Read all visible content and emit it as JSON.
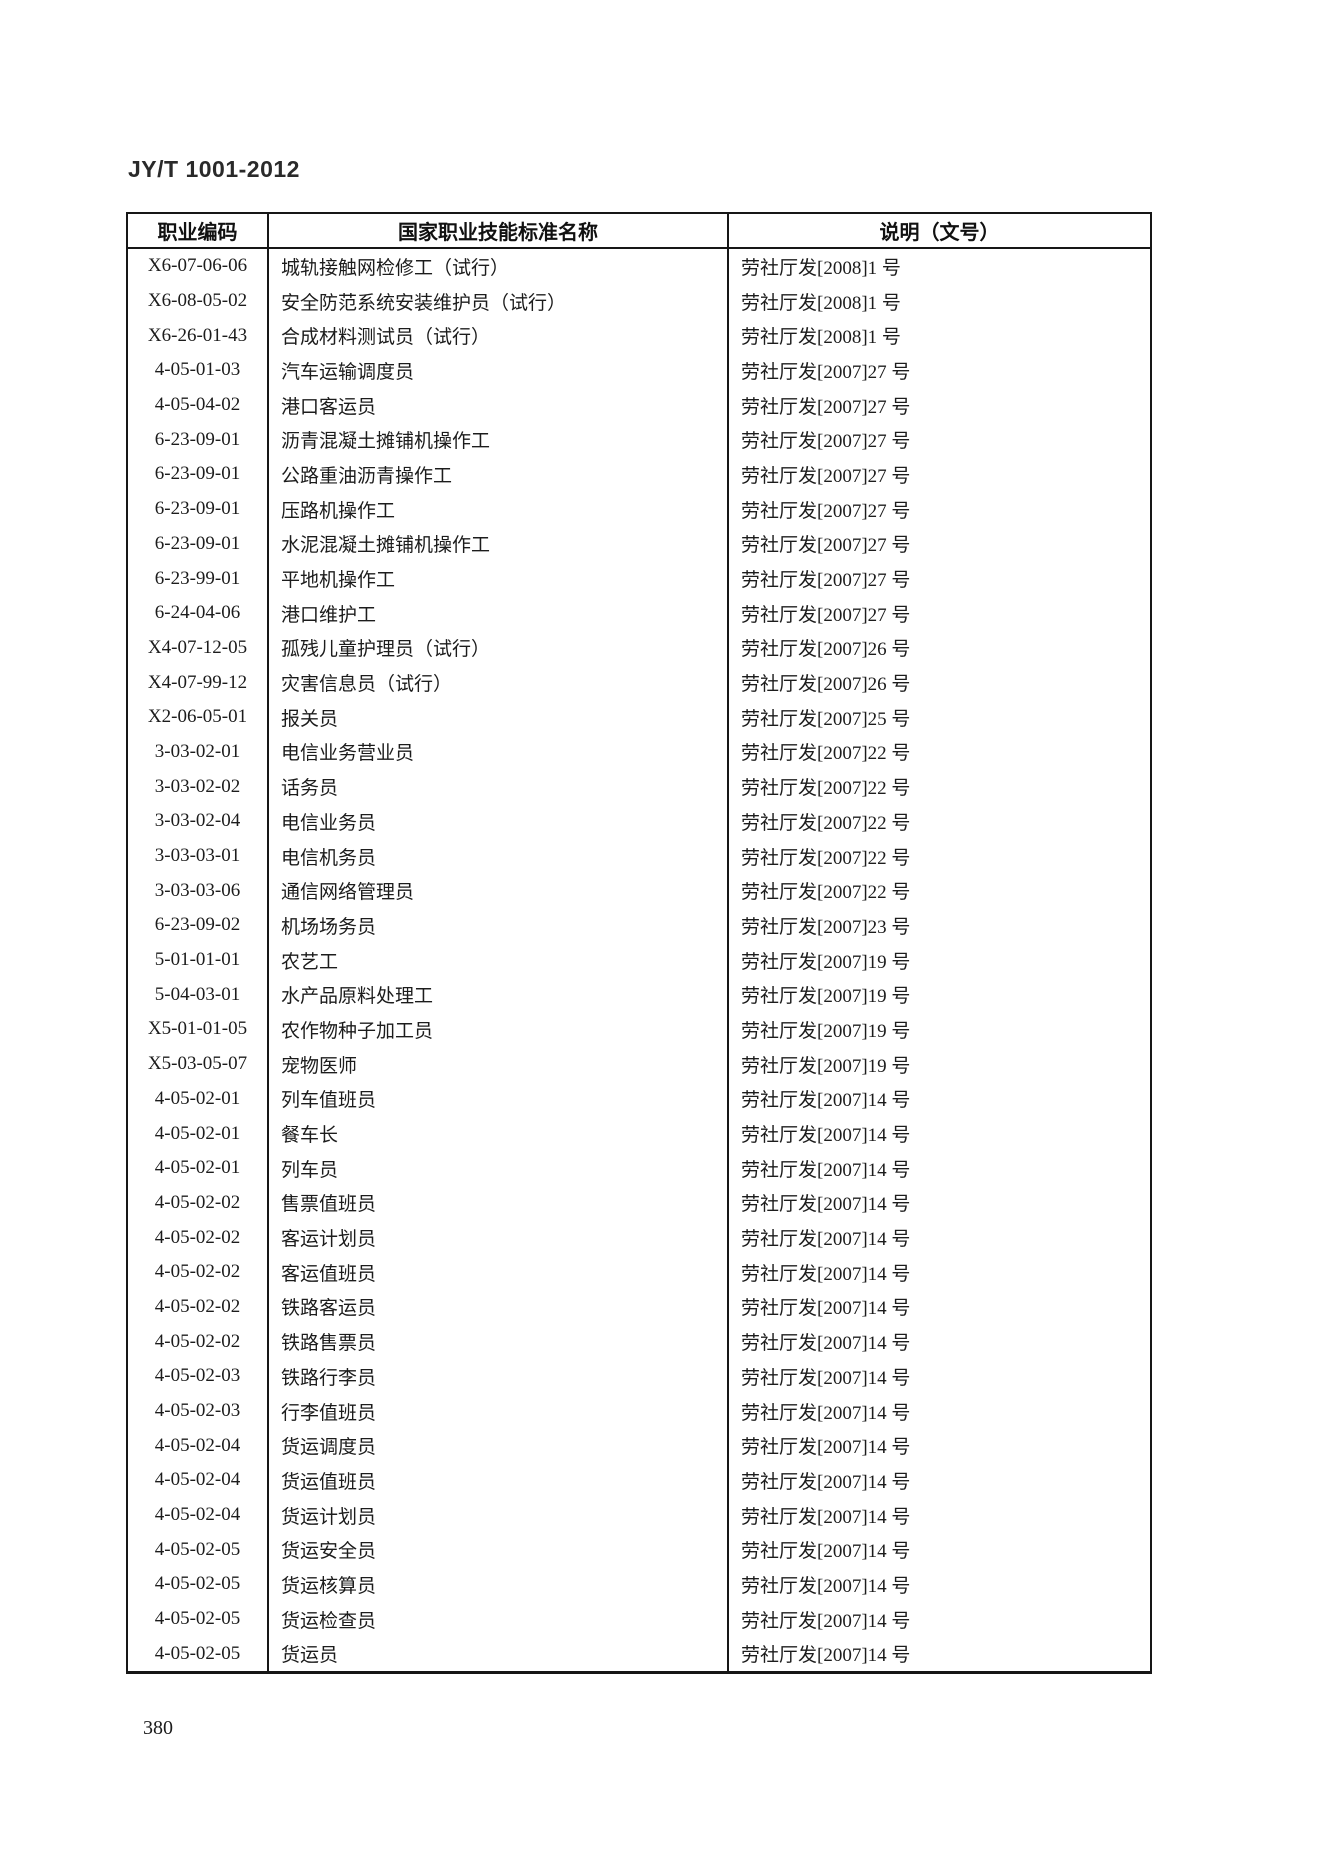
{
  "page": {
    "doc_code": "JY/T 1001-2012",
    "page_number": "380"
  },
  "table": {
    "headers": [
      "职业编码",
      "国家职业技能标准名称",
      "说明（文号）"
    ],
    "rows": [
      {
        "code": "X6-07-06-06",
        "name": "城轨接触网检修工（试行）",
        "doc": "劳社厅发[2008]1 号"
      },
      {
        "code": "X6-08-05-02",
        "name": "安全防范系统安装维护员（试行）",
        "doc": "劳社厅发[2008]1 号"
      },
      {
        "code": "X6-26-01-43",
        "name": "合成材料测试员（试行）",
        "doc": "劳社厅发[2008]1 号"
      },
      {
        "code": "4-05-01-03",
        "name": "汽车运输调度员",
        "doc": "劳社厅发[2007]27 号"
      },
      {
        "code": "4-05-04-02",
        "name": "港口客运员",
        "doc": "劳社厅发[2007]27 号"
      },
      {
        "code": "6-23-09-01",
        "name": "沥青混凝土摊铺机操作工",
        "doc": "劳社厅发[2007]27 号"
      },
      {
        "code": "6-23-09-01",
        "name": "公路重油沥青操作工",
        "doc": "劳社厅发[2007]27 号"
      },
      {
        "code": "6-23-09-01",
        "name": "压路机操作工",
        "doc": "劳社厅发[2007]27 号"
      },
      {
        "code": "6-23-09-01",
        "name": "水泥混凝土摊铺机操作工",
        "doc": "劳社厅发[2007]27 号"
      },
      {
        "code": "6-23-99-01",
        "name": "平地机操作工",
        "doc": "劳社厅发[2007]27 号"
      },
      {
        "code": "6-24-04-06",
        "name": "港口维护工",
        "doc": "劳社厅发[2007]27 号"
      },
      {
        "code": "X4-07-12-05",
        "name": "孤残儿童护理员（试行）",
        "doc": "劳社厅发[2007]26 号"
      },
      {
        "code": "X4-07-99-12",
        "name": "灾害信息员（试行）",
        "doc": "劳社厅发[2007]26 号"
      },
      {
        "code": "X2-06-05-01",
        "name": "报关员",
        "doc": "劳社厅发[2007]25 号"
      },
      {
        "code": "3-03-02-01",
        "name": "电信业务营业员",
        "doc": "劳社厅发[2007]22 号"
      },
      {
        "code": "3-03-02-02",
        "name": "话务员",
        "doc": "劳社厅发[2007]22 号"
      },
      {
        "code": "3-03-02-04",
        "name": "电信业务员",
        "doc": "劳社厅发[2007]22 号"
      },
      {
        "code": "3-03-03-01",
        "name": "电信机务员",
        "doc": "劳社厅发[2007]22 号"
      },
      {
        "code": "3-03-03-06",
        "name": "通信网络管理员",
        "doc": "劳社厅发[2007]22 号"
      },
      {
        "code": "6-23-09-02",
        "name": "机场场务员",
        "doc": "劳社厅发[2007]23 号"
      },
      {
        "code": "5-01-01-01",
        "name": "农艺工",
        "doc": "劳社厅发[2007]19 号"
      },
      {
        "code": "5-04-03-01",
        "name": "水产品原料处理工",
        "doc": "劳社厅发[2007]19 号"
      },
      {
        "code": "X5-01-01-05",
        "name": "农作物种子加工员",
        "doc": "劳社厅发[2007]19 号"
      },
      {
        "code": "X5-03-05-07",
        "name": "宠物医师",
        "doc": "劳社厅发[2007]19 号"
      },
      {
        "code": "4-05-02-01",
        "name": "列车值班员",
        "doc": "劳社厅发[2007]14 号"
      },
      {
        "code": "4-05-02-01",
        "name": "餐车长",
        "doc": "劳社厅发[2007]14 号"
      },
      {
        "code": "4-05-02-01",
        "name": "列车员",
        "doc": "劳社厅发[2007]14 号"
      },
      {
        "code": "4-05-02-02",
        "name": "售票值班员",
        "doc": "劳社厅发[2007]14 号"
      },
      {
        "code": "4-05-02-02",
        "name": "客运计划员",
        "doc": "劳社厅发[2007]14 号"
      },
      {
        "code": "4-05-02-02",
        "name": "客运值班员",
        "doc": "劳社厅发[2007]14 号"
      },
      {
        "code": "4-05-02-02",
        "name": "铁路客运员",
        "doc": "劳社厅发[2007]14 号"
      },
      {
        "code": "4-05-02-02",
        "name": "铁路售票员",
        "doc": "劳社厅发[2007]14 号"
      },
      {
        "code": "4-05-02-03",
        "name": "铁路行李员",
        "doc": "劳社厅发[2007]14 号"
      },
      {
        "code": "4-05-02-03",
        "name": "行李值班员",
        "doc": "劳社厅发[2007]14 号"
      },
      {
        "code": "4-05-02-04",
        "name": "货运调度员",
        "doc": "劳社厅发[2007]14 号"
      },
      {
        "code": "4-05-02-04",
        "name": "货运值班员",
        "doc": "劳社厅发[2007]14 号"
      },
      {
        "code": "4-05-02-04",
        "name": "货运计划员",
        "doc": "劳社厅发[2007]14 号"
      },
      {
        "code": "4-05-02-05",
        "name": "货运安全员",
        "doc": "劳社厅发[2007]14 号"
      },
      {
        "code": "4-05-02-05",
        "name": "货运核算员",
        "doc": "劳社厅发[2007]14 号"
      },
      {
        "code": "4-05-02-05",
        "name": "货运检查员",
        "doc": "劳社厅发[2007]14 号"
      },
      {
        "code": "4-05-02-05",
        "name": "货运员",
        "doc": "劳社厅发[2007]14 号"
      }
    ]
  }
}
